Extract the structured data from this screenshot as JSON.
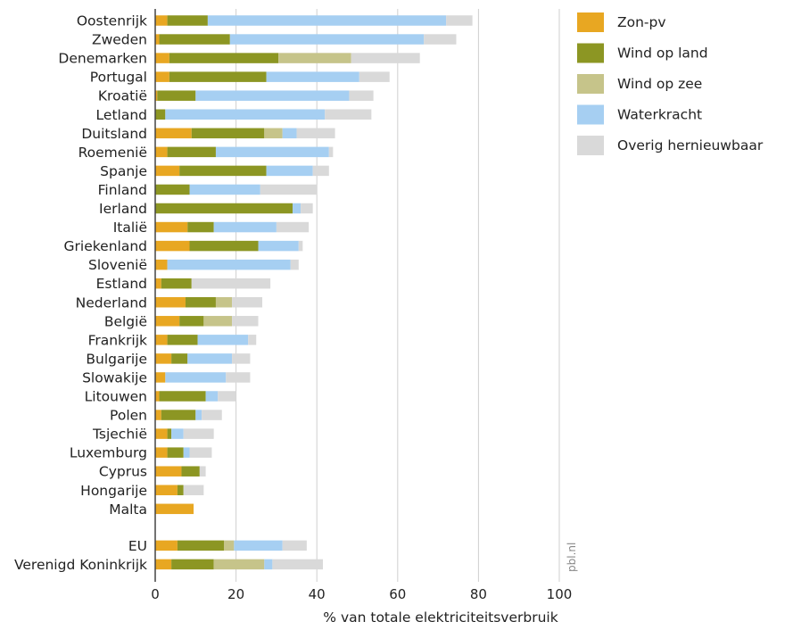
{
  "chart_data": {
    "type": "bar",
    "orientation": "horizontal",
    "stacked": true,
    "xlabel": "% van totale elektriciteitsverbruik",
    "xlim": [
      0,
      100
    ],
    "xticks": [
      "0",
      "20",
      "40",
      "60",
      "80",
      "100"
    ],
    "grid": true,
    "legend_position": "top-right",
    "source": "pbl.nl",
    "categories": [
      "Oostenrijk",
      "Zweden",
      "Denemarken",
      "Portugal",
      "Kroatië",
      "Letland",
      "Duitsland",
      "Roemenië",
      "Spanje",
      "Finland",
      "Ierland",
      "Italië",
      "Griekenland",
      "Slovenië",
      "Estland",
      "Nederland",
      "België",
      "Frankrijk",
      "Bulgarije",
      "Slowakije",
      "Litouwen",
      "Polen",
      "Tsjechië",
      "Luxemburg",
      "Cyprus",
      "Hongarije",
      "Malta",
      "EU",
      "Verenigd Koninkrijk"
    ],
    "series": [
      {
        "name": "Zon-pv",
        "color": "#E8A722",
        "values": [
          3,
          1,
          3.5,
          3.5,
          0.5,
          0,
          9,
          3,
          6,
          0,
          0,
          8,
          8.5,
          3,
          1.5,
          7.5,
          6,
          3,
          4,
          2.5,
          1,
          1.5,
          3,
          3,
          6.5,
          5.5,
          9.5,
          5.5,
          4
        ]
      },
      {
        "name": "Wind op land",
        "color": "#8C9623",
        "values": [
          10,
          17.5,
          27,
          24,
          9.5,
          2.5,
          18,
          12,
          21.5,
          8.5,
          34,
          6.5,
          17,
          0,
          7.5,
          7.5,
          6,
          7.5,
          4,
          0,
          11.5,
          8.5,
          1,
          4,
          4.5,
          1.5,
          0,
          11.5,
          10.5
        ]
      },
      {
        "name": "Wind op zee",
        "color": "#C6C48A",
        "values": [
          0,
          0,
          18,
          0,
          0,
          0,
          4.5,
          0,
          0,
          0,
          0,
          0,
          0,
          0,
          0,
          4,
          7,
          0,
          0,
          0,
          0,
          0,
          0,
          0,
          0,
          0,
          0,
          2.5,
          12.5
        ]
      },
      {
        "name": "Waterkracht",
        "color": "#A6CFF2",
        "values": [
          59,
          48,
          0,
          23,
          38,
          39.5,
          3.5,
          28,
          11.5,
          17.5,
          2,
          15.5,
          10,
          30.5,
          0,
          0,
          0,
          12.5,
          11,
          15,
          3,
          1.5,
          3,
          1.5,
          0,
          0,
          0,
          12,
          2
        ]
      },
      {
        "name": "Overig hernieuwbaar",
        "color": "#D9D9D9",
        "values": [
          6.5,
          8,
          17,
          7.5,
          6,
          11.5,
          9.5,
          1,
          4,
          14,
          3,
          8,
          1,
          2,
          19.5,
          7.5,
          6.5,
          2,
          4.5,
          6,
          4.5,
          5,
          7.5,
          5.5,
          1.5,
          5,
          0,
          6,
          12.5
        ]
      }
    ]
  }
}
